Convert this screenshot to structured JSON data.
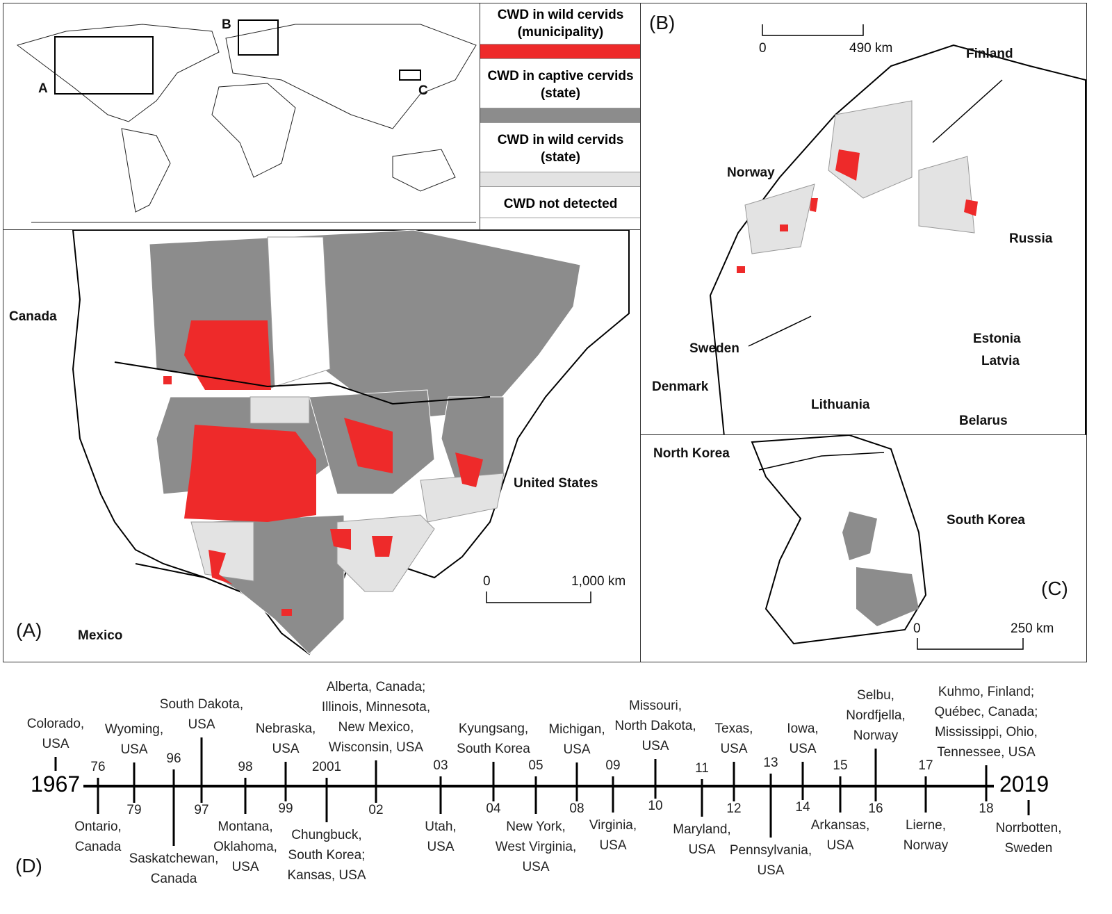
{
  "colors": {
    "wild_municipality": "#ee2a2a",
    "captive_state": "#8c8c8c",
    "wild_state": "#e3e3e3",
    "not_detected": "#ffffff"
  },
  "world_map": {
    "box_labels": [
      "A",
      "B",
      "C"
    ]
  },
  "legend": {
    "items": [
      {
        "label": "CWD in wild cervids (municipality)",
        "color": "#ee2a2a"
      },
      {
        "label": "CWD in captive cervids (state)",
        "color": "#8c8c8c"
      },
      {
        "label": "CWD in wild cervids (state)",
        "color": "#e3e3e3"
      },
      {
        "label": "CWD not detected",
        "color": "#ffffff"
      }
    ]
  },
  "panel_a": {
    "label": "(A)",
    "countries": [
      "Canada",
      "United States",
      "Mexico"
    ],
    "scale": {
      "start": "0",
      "end": "1,000 km"
    }
  },
  "panel_b": {
    "label": "(B)",
    "countries": [
      "Finland",
      "Norway",
      "Russia",
      "Sweden",
      "Estonia",
      "Latvia",
      "Denmark",
      "Lithuania",
      "Belarus"
    ],
    "scale": {
      "start": "0",
      "end": "490 km"
    }
  },
  "panel_c": {
    "label": "(C)",
    "countries": [
      "North Korea",
      "South Korea"
    ],
    "scale": {
      "start": "0",
      "end": "250 km"
    }
  },
  "timeline": {
    "label": "(D)",
    "start": "1967",
    "end": "2019",
    "events": [
      {
        "year": "1967",
        "place": "Colorado,\nUSA"
      },
      {
        "year": "76",
        "place": "Ontario,\nCanada"
      },
      {
        "year": "79",
        "place": "Wyoming,\nUSA"
      },
      {
        "year": "96",
        "place": "Saskatchewan,\nCanada"
      },
      {
        "year": "97",
        "place": "South Dakota,\nUSA"
      },
      {
        "year": "98",
        "place": "Montana,\nOklahoma,\nUSA"
      },
      {
        "year": "99",
        "place": "Nebraska,\nUSA"
      },
      {
        "year": "2001",
        "place": "Chungbuck,\nSouth Korea;\nKansas, USA"
      },
      {
        "year": "02",
        "place": "Alberta, Canada;\nIllinois, Minnesota,\nNew Mexico,\nWisconsin, USA"
      },
      {
        "year": "03",
        "place": "Utah,\nUSA"
      },
      {
        "year": "04",
        "place": "Kyungsang,\nSouth Korea"
      },
      {
        "year": "05",
        "place": "New York,\nWest Virginia,\nUSA"
      },
      {
        "year": "08",
        "place": "Michigan,\nUSA"
      },
      {
        "year": "09",
        "place": "Virginia,\nUSA"
      },
      {
        "year": "10",
        "place": "Missouri,\nNorth Dakota,\nUSA"
      },
      {
        "year": "11",
        "place": "Maryland,\nUSA"
      },
      {
        "year": "12",
        "place": "Texas,\nUSA"
      },
      {
        "year": "13",
        "place": "Pennsylvania,\nUSA"
      },
      {
        "year": "14",
        "place": "Iowa,\nUSA"
      },
      {
        "year": "15",
        "place": "Arkansas,\nUSA"
      },
      {
        "year": "16",
        "place": "Selbu,\nNordfjella,\nNorway"
      },
      {
        "year": "17",
        "place": "Lierne,\nNorway"
      },
      {
        "year": "18",
        "place": "Kuhmo, Finland;\nQuébec, Canada;\nMississippi, Ohio,\nTennessee, USA"
      },
      {
        "year": "2019",
        "place": "Norrbotten,\nSweden"
      }
    ]
  }
}
